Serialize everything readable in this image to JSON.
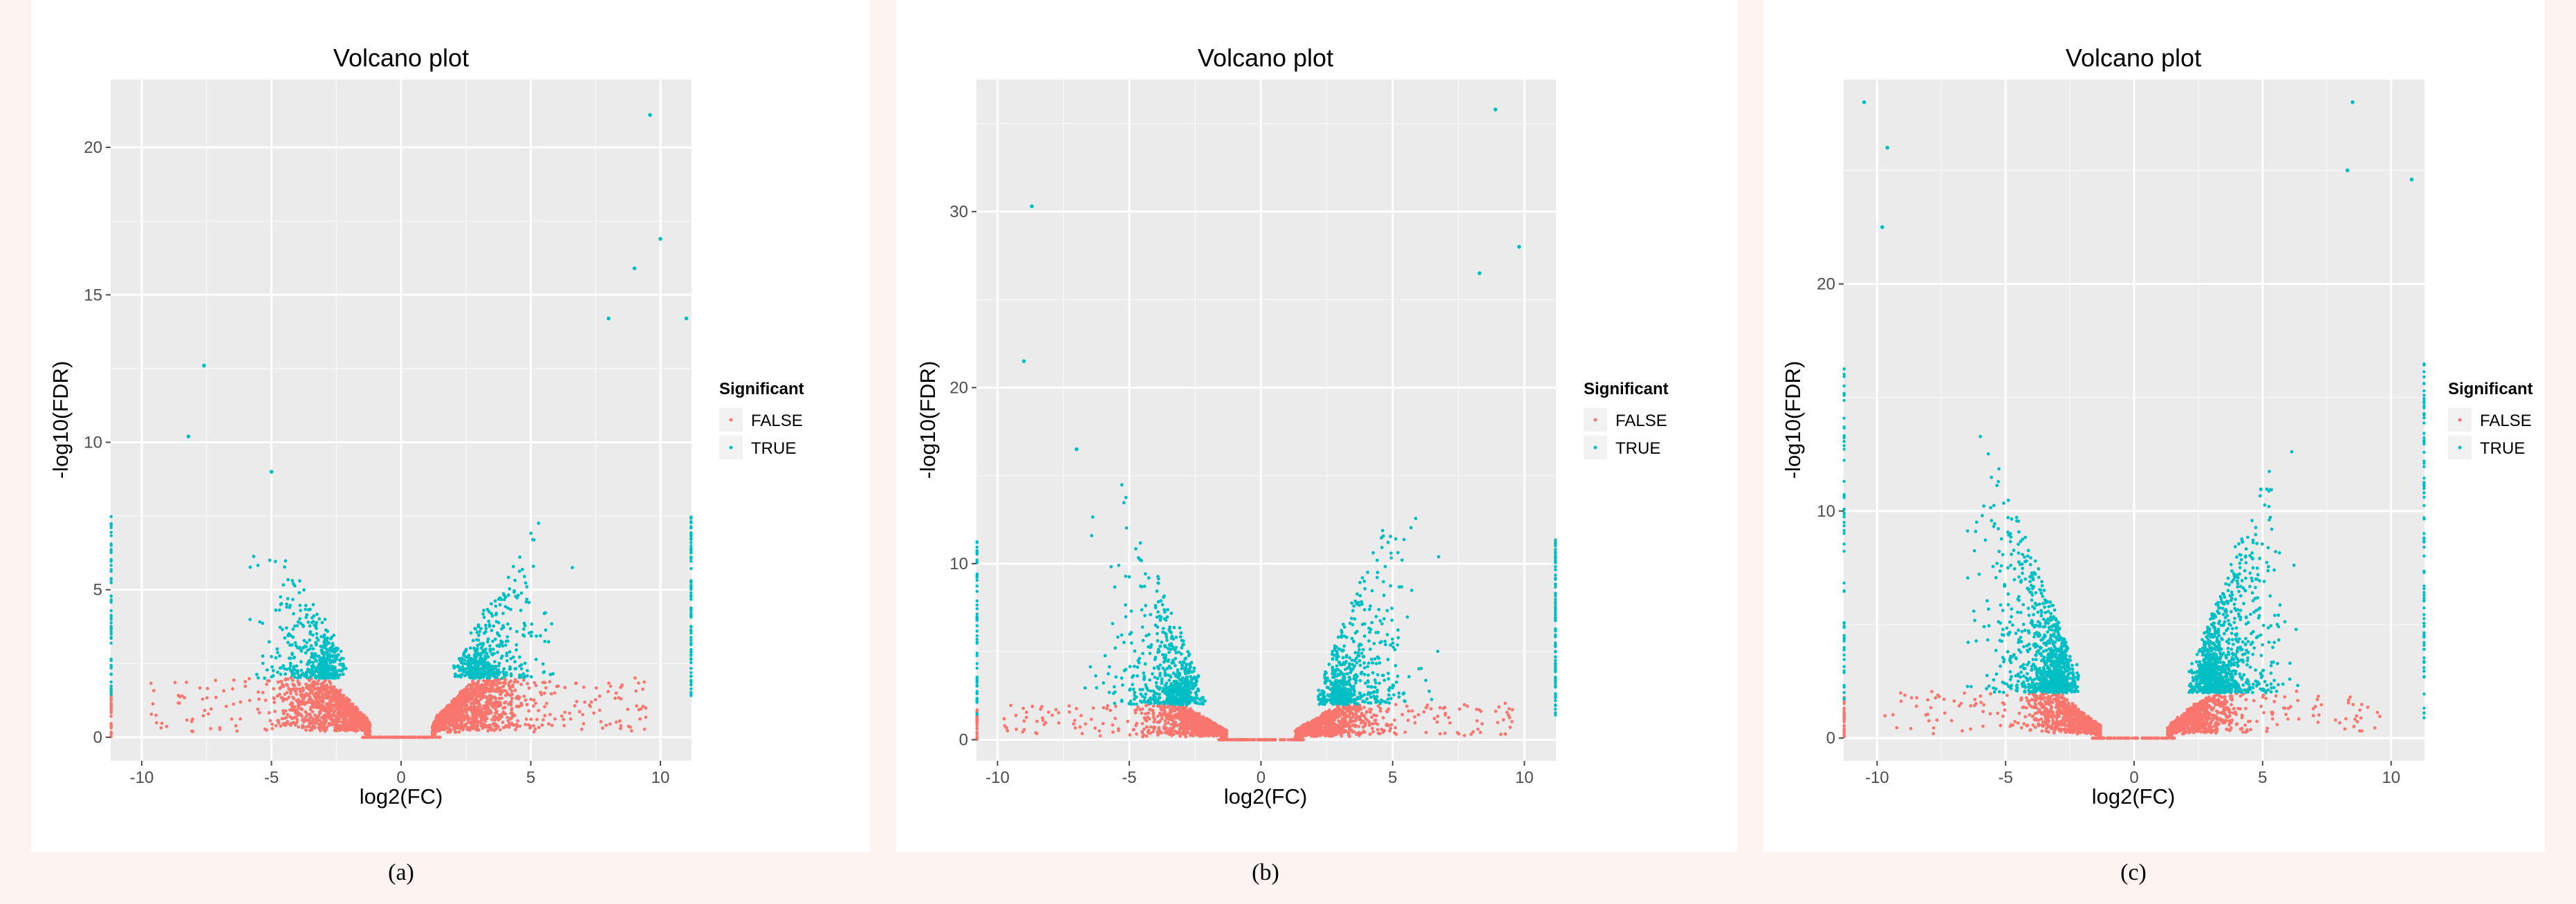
{
  "figure": {
    "colors": {
      "panel_bg": "#ebebeb",
      "grid": "#ffffff",
      "false_color": "#f8766d",
      "true_color": "#00bfc4",
      "text": "#000000",
      "tick_text": "#4d4d4d",
      "margin_tint": "#fdf3f1"
    },
    "legend": {
      "title": "Significant",
      "items": [
        "FALSE",
        "TRUE"
      ]
    }
  },
  "chart_data": [
    {
      "type": "scatter",
      "title": "Volcano plot",
      "xlabel": "log2(FC)",
      "ylabel": "-log10(FDR)",
      "caption": "(a)",
      "xlim": [
        -11.2,
        11.2
      ],
      "ylim": [
        -0.8,
        22.3
      ],
      "x_ticks": [
        -10,
        -5,
        0,
        5,
        10
      ],
      "x_tick_labels": [
        "-10",
        "-5",
        "0",
        "5",
        "10"
      ],
      "y_ticks": [
        0,
        5,
        10,
        15,
        20
      ],
      "y_tick_labels": [
        "0",
        "5",
        "10",
        "15",
        "20"
      ],
      "series": [
        {
          "name": "FALSE",
          "description": "non-significant genes, FDR below threshold",
          "cutoff_y": 2.0,
          "approx_count": 2600
        },
        {
          "name": "TRUE",
          "description": "significant genes, V-shaped arms rising to about 21 at log2FC 9.6",
          "approx_count": 700,
          "highlight_points": [
            [
              9.6,
              21.1
            ],
            [
              10.0,
              16.9
            ],
            [
              9.0,
              15.9
            ],
            [
              -7.6,
              12.6
            ],
            [
              8.0,
              14.2
            ],
            [
              -8.2,
              10.2
            ],
            [
              -5.0,
              9.0
            ],
            [
              11.0,
              14.2
            ]
          ]
        }
      ]
    },
    {
      "type": "scatter",
      "title": "Volcano plot",
      "xlabel": "log2(FC)",
      "ylabel": "-log10(FDR)",
      "caption": "(b)",
      "xlim": [
        -10.8,
        11.2
      ],
      "ylim": [
        -1.2,
        37.5
      ],
      "x_ticks": [
        -10,
        -5,
        0,
        5,
        10
      ],
      "x_tick_labels": [
        "-10",
        "-5",
        "0",
        "5",
        "10"
      ],
      "y_ticks": [
        0,
        10,
        20,
        30
      ],
      "y_tick_labels": [
        "0",
        "10",
        "20",
        "30"
      ],
      "series": [
        {
          "name": "FALSE",
          "description": "non-significant genes",
          "cutoff_y": 2.0,
          "approx_count": 2000
        },
        {
          "name": "TRUE",
          "description": "significant genes, V-shaped arms rising to about 36 at log2FC 8.9",
          "approx_count": 900,
          "highlight_points": [
            [
              8.9,
              35.8
            ],
            [
              -8.7,
              30.3
            ],
            [
              9.8,
              28.0
            ],
            [
              8.3,
              26.5
            ],
            [
              -9.0,
              21.5
            ],
            [
              -7.0,
              16.5
            ]
          ]
        }
      ]
    },
    {
      "type": "scatter",
      "title": "Volcano plot",
      "xlabel": "log2(FC)",
      "ylabel": "-log10(FDR)",
      "caption": "(c)",
      "xlim": [
        -11.3,
        11.3
      ],
      "ylim": [
        -1.0,
        29.0
      ],
      "x_ticks": [
        -10,
        -5,
        0,
        5,
        10
      ],
      "x_tick_labels": [
        "-10",
        "-5",
        "0",
        "5",
        "10"
      ],
      "y_ticks": [
        0,
        10,
        20
      ],
      "y_tick_labels": [
        "0",
        "10",
        "20"
      ],
      "series": [
        {
          "name": "FALSE",
          "description": "non-significant genes",
          "cutoff_y": 2.0,
          "approx_count": 1800
        },
        {
          "name": "TRUE",
          "description": "significant genes, dense V-shaped arms rising to about 28",
          "approx_count": 1500,
          "highlight_points": [
            [
              -10.5,
              28.0
            ],
            [
              8.5,
              28.0
            ],
            [
              -9.6,
              26.0
            ],
            [
              8.3,
              25.0
            ],
            [
              10.8,
              24.6
            ],
            [
              -9.8,
              22.5
            ]
          ]
        }
      ]
    }
  ]
}
